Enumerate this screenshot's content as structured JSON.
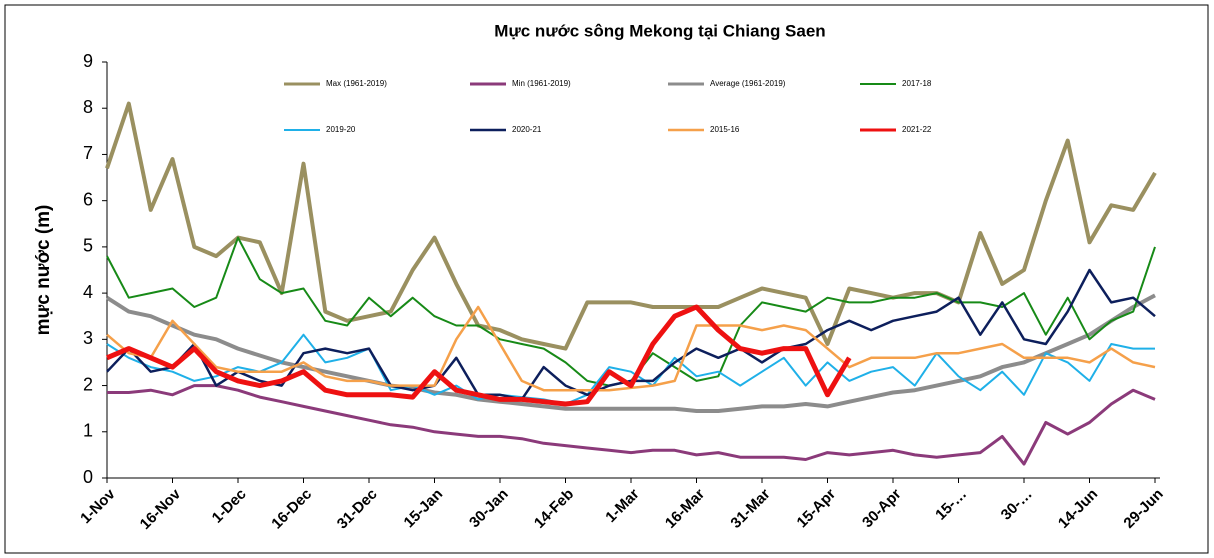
{
  "chart_data": {
    "type": "line",
    "title": "Mực nước sông Mekong tại Chiang Saen",
    "y_label": "mực nước (m)",
    "categories": [
      "1-Nov",
      null,
      null,
      "16-Nov",
      null,
      null,
      "1-Dec",
      null,
      null,
      "16-Dec",
      null,
      null,
      "31-Dec",
      null,
      null,
      "15-Jan",
      null,
      null,
      "30-Jan",
      null,
      null,
      "14-Feb",
      null,
      null,
      "1-Mar",
      null,
      null,
      "16-Mar",
      null,
      null,
      "31-Mar",
      null,
      null,
      "15-Apr",
      null,
      null,
      "30-Apr",
      null,
      null,
      "15-…",
      null,
      null,
      "30-…",
      null,
      null,
      "14-Jun",
      null,
      null,
      "29-Jun"
    ],
    "ylim": [
      0,
      9
    ],
    "yticks": [
      0,
      1,
      2,
      3,
      4,
      5,
      6,
      7,
      8,
      9
    ],
    "series": [
      {
        "name": "Max (1961-2019)",
        "color": "#9a9060",
        "width": 4,
        "values": [
          6.7,
          8.1,
          5.8,
          6.9,
          5.0,
          4.8,
          5.2,
          5.1,
          4.0,
          6.8,
          3.6,
          3.4,
          3.5,
          3.6,
          4.5,
          5.2,
          4.2,
          3.3,
          3.2,
          3.0,
          2.9,
          2.8,
          3.8,
          3.8,
          3.8,
          3.7,
          3.7,
          3.7,
          3.7,
          3.9,
          4.1,
          4.0,
          3.9,
          2.9,
          4.1,
          4.0,
          3.9,
          4.0,
          4.0,
          3.8,
          5.3,
          4.2,
          4.5,
          6.0,
          7.3,
          5.1,
          5.9,
          5.8,
          6.6
        ]
      },
      {
        "name": "Min (1961-2019)",
        "color": "#8b3a7a",
        "width": 3,
        "values": [
          1.85,
          1.85,
          1.9,
          1.8,
          2.0,
          2.0,
          1.9,
          1.75,
          1.65,
          1.55,
          1.45,
          1.35,
          1.25,
          1.15,
          1.1,
          1.0,
          0.95,
          0.9,
          0.9,
          0.85,
          0.75,
          0.7,
          0.65,
          0.6,
          0.55,
          0.6,
          0.6,
          0.5,
          0.55,
          0.45,
          0.45,
          0.45,
          0.4,
          0.55,
          0.5,
          0.55,
          0.6,
          0.5,
          0.45,
          0.5,
          0.55,
          0.9,
          0.3,
          1.2,
          0.95,
          1.2,
          1.6,
          1.9,
          1.7
        ]
      },
      {
        "name": "Average (1961-2019)",
        "color": "#8c8c8c",
        "width": 4,
        "values": [
          3.9,
          3.6,
          3.5,
          3.3,
          3.1,
          3.0,
          2.8,
          2.65,
          2.5,
          2.4,
          2.3,
          2.2,
          2.1,
          2.0,
          1.95,
          1.85,
          1.8,
          1.7,
          1.65,
          1.6,
          1.55,
          1.5,
          1.5,
          1.5,
          1.5,
          1.5,
          1.5,
          1.45,
          1.45,
          1.5,
          1.55,
          1.55,
          1.6,
          1.55,
          1.65,
          1.75,
          1.85,
          1.9,
          2.0,
          2.1,
          2.2,
          2.4,
          2.5,
          2.7,
          2.9,
          3.1,
          3.4,
          3.7,
          3.95
        ]
      },
      {
        "name": "2017-18",
        "color": "#178a17",
        "width": 2,
        "values": [
          4.8,
          3.9,
          4.0,
          4.1,
          3.7,
          3.9,
          5.2,
          4.3,
          4.0,
          4.1,
          3.4,
          3.3,
          3.9,
          3.5,
          3.9,
          3.5,
          3.3,
          3.3,
          3.0,
          2.9,
          2.8,
          2.5,
          2.1,
          2.0,
          2.1,
          2.7,
          2.4,
          2.1,
          2.2,
          3.3,
          3.8,
          3.7,
          3.6,
          3.9,
          3.8,
          3.8,
          3.9,
          3.9,
          4.0,
          3.8,
          3.8,
          3.7,
          4.0,
          3.1,
          3.9,
          3.0,
          3.4,
          3.6,
          5.0
        ]
      },
      {
        "name": "2019-20",
        "color": "#1fb0e8",
        "width": 2,
        "values": [
          2.9,
          2.6,
          2.4,
          2.3,
          2.1,
          2.2,
          2.4,
          2.3,
          2.5,
          3.1,
          2.5,
          2.6,
          2.8,
          1.9,
          2.0,
          1.8,
          2.0,
          1.7,
          1.8,
          1.75,
          1.7,
          1.6,
          1.8,
          2.4,
          2.3,
          2.0,
          2.6,
          2.2,
          2.3,
          2.0,
          2.3,
          2.6,
          2.0,
          2.5,
          2.1,
          2.3,
          2.4,
          2.0,
          2.7,
          2.2,
          1.9,
          2.3,
          1.8,
          2.7,
          2.5,
          2.1,
          2.9,
          2.8,
          2.8
        ]
      },
      {
        "name": "2020-21",
        "color": "#0d1f5c",
        "width": 2.5,
        "values": [
          2.3,
          2.8,
          2.3,
          2.4,
          2.9,
          2.0,
          2.3,
          2.1,
          2.0,
          2.7,
          2.8,
          2.7,
          2.8,
          2.0,
          1.9,
          2.0,
          2.6,
          1.8,
          1.8,
          1.7,
          2.4,
          2.0,
          1.8,
          2.0,
          2.1,
          2.1,
          2.5,
          2.8,
          2.6,
          2.8,
          2.5,
          2.8,
          2.9,
          3.2,
          3.4,
          3.2,
          3.4,
          3.5,
          3.6,
          3.9,
          3.1,
          3.8,
          3.0,
          2.9,
          3.6,
          4.5,
          3.8,
          3.9,
          3.5
        ]
      },
      {
        "name": "2015-16",
        "color": "#f5a04a",
        "width": 2.5,
        "values": [
          3.1,
          2.7,
          2.6,
          3.4,
          2.9,
          2.4,
          2.3,
          2.3,
          2.3,
          2.5,
          2.2,
          2.1,
          2.1,
          2.0,
          2.0,
          2.0,
          3.0,
          3.7,
          2.9,
          2.1,
          1.9,
          1.9,
          1.9,
          1.9,
          1.95,
          2.0,
          2.1,
          3.3,
          3.3,
          3.3,
          3.2,
          3.3,
          3.2,
          2.8,
          2.4,
          2.6,
          2.6,
          2.6,
          2.7,
          2.7,
          2.8,
          2.9,
          2.6,
          2.6,
          2.6,
          2.5,
          2.8,
          2.5,
          2.4
        ]
      },
      {
        "name": "2021-22",
        "color": "#ee1111",
        "width": 5,
        "values": [
          2.6,
          2.8,
          2.6,
          2.4,
          2.8,
          2.3,
          2.1,
          2.0,
          2.1,
          2.3,
          1.9,
          1.8,
          1.8,
          1.8,
          1.75,
          2.3,
          1.9,
          1.8,
          1.7,
          1.7,
          1.65,
          1.6,
          1.65,
          2.3,
          2.0,
          2.9,
          3.5,
          3.7,
          3.2,
          2.8,
          2.7,
          2.8,
          2.8,
          1.8,
          2.6,
          null,
          null,
          null,
          null,
          null,
          null,
          null,
          null,
          null,
          null,
          null,
          null,
          null,
          null
        ]
      }
    ]
  }
}
